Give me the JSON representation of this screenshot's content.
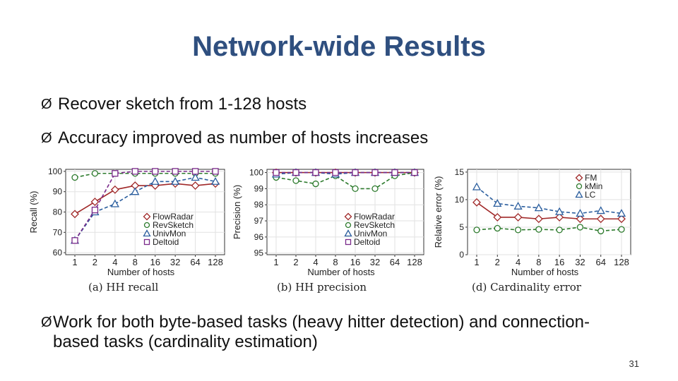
{
  "slide": {
    "title": "Network-wide Results",
    "bullets": [
      "Recover sketch from 1-128 hosts",
      "Accuracy improved as number of hosts increases",
      "Work for both byte-based tasks (heavy hitter detection) and connection-based tasks (cardinality estimation)"
    ],
    "bullet_glyph": "Ø",
    "page_number": "31"
  },
  "chart_data": [
    {
      "type": "line",
      "caption": "(a) HH recall",
      "xlabel": "Number of hosts",
      "ylabel": "Recall (%)",
      "categories": [
        "1",
        "2",
        "4",
        "8",
        "16",
        "32",
        "64",
        "128"
      ],
      "yticks": [
        60,
        70,
        80,
        90,
        100
      ],
      "ylim": [
        59,
        101
      ],
      "legend_position": "bottom-right",
      "series": [
        {
          "name": "FlowRadar",
          "values": [
            79,
            85,
            91,
            93,
            93,
            94,
            93,
            94
          ],
          "color": "#a02828",
          "marker": "diamond",
          "dash": "solid"
        },
        {
          "name": "RevSketch",
          "values": [
            97,
            99,
            99,
            99,
            99,
            99,
            99,
            99
          ],
          "color": "#2c7a2c",
          "marker": "circle",
          "dash": "dashed"
        },
        {
          "name": "UnivMon",
          "values": [
            66,
            80,
            84,
            90,
            95,
            95,
            97,
            95
          ],
          "color": "#2b5e9e",
          "marker": "triangle",
          "dash": "dashed"
        },
        {
          "name": "Deltoid",
          "values": [
            66,
            81,
            99,
            100,
            100,
            100,
            100,
            100
          ],
          "color": "#7a2a8a",
          "marker": "square",
          "dash": "dashed"
        }
      ]
    },
    {
      "type": "line",
      "caption": "(b) HH precision",
      "xlabel": "Number of hosts",
      "ylabel": "Precision (%)",
      "categories": [
        "1",
        "2",
        "4",
        "8",
        "16",
        "32",
        "64",
        "128"
      ],
      "yticks": [
        95,
        96,
        97,
        98,
        99,
        100
      ],
      "ylim": [
        94.9,
        100.2
      ],
      "legend_position": "bottom-right",
      "series": [
        {
          "name": "FlowRadar",
          "values": [
            100,
            100,
            100,
            100,
            100,
            100,
            100,
            100
          ],
          "color": "#a02828",
          "marker": "diamond",
          "dash": "solid"
        },
        {
          "name": "RevSketch",
          "values": [
            99.7,
            99.5,
            99.3,
            99.8,
            99.0,
            99.0,
            99.8,
            100
          ],
          "color": "#2c7a2c",
          "marker": "circle",
          "dash": "dashed"
        },
        {
          "name": "UnivMon",
          "values": [
            99.9,
            100,
            100,
            99.9,
            100,
            100,
            100,
            100
          ],
          "color": "#2b5e9e",
          "marker": "triangle",
          "dash": "dashed"
        },
        {
          "name": "Deltoid",
          "values": [
            100,
            100,
            100,
            100,
            100,
            100,
            100,
            100
          ],
          "color": "#7a2a8a",
          "marker": "square",
          "dash": "dashed"
        }
      ]
    },
    {
      "type": "line",
      "caption": "(d) Cardinality error",
      "xlabel": "Number of hosts",
      "ylabel": "Relative error (%)",
      "categories": [
        "1",
        "2",
        "4",
        "8",
        "16",
        "32",
        "64",
        "128"
      ],
      "yticks": [
        0,
        5,
        10,
        15
      ],
      "ylim": [
        0,
        15.5
      ],
      "legend_position": "top-right",
      "series": [
        {
          "name": "FM",
          "values": [
            9.5,
            6.8,
            6.8,
            6.5,
            6.8,
            6.5,
            6.5,
            6.5
          ],
          "color": "#a02828",
          "marker": "diamond",
          "dash": "solid"
        },
        {
          "name": "kMin",
          "values": [
            4.5,
            4.8,
            4.5,
            4.6,
            4.5,
            5.0,
            4.3,
            4.6
          ],
          "color": "#2c7a2c",
          "marker": "circle",
          "dash": "dashed"
        },
        {
          "name": "LC",
          "values": [
            12.3,
            9.3,
            8.8,
            8.5,
            7.8,
            7.5,
            8.0,
            7.5
          ],
          "color": "#2b5e9e",
          "marker": "triangle",
          "dash": "dashed"
        }
      ]
    }
  ]
}
